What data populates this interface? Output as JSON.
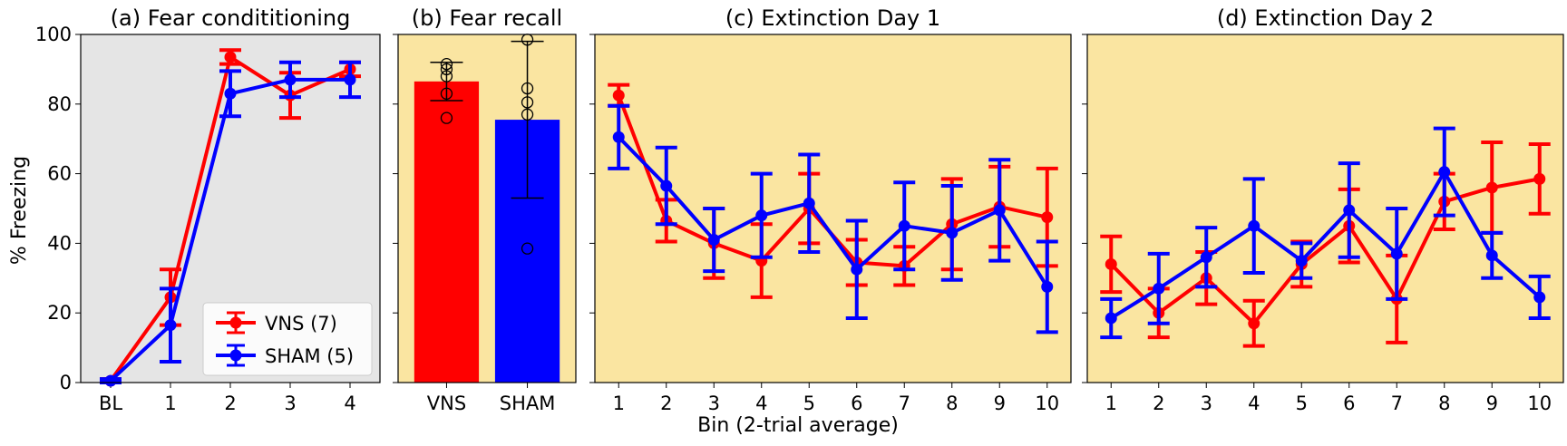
{
  "shared": {
    "ylabel": "% Freezing",
    "xlabel": "Bin (2-trial average)",
    "yticks": [
      0,
      20,
      40,
      60,
      80,
      100
    ],
    "colors": {
      "vns": "#ff0000",
      "sham": "#0000ff",
      "panel_gray": "#e5e5e5",
      "panel_yellow": "#fae5a1"
    }
  },
  "chart_data": [
    {
      "id": "a",
      "type": "line",
      "title": "(a) Fear condititioning",
      "categories": [
        "BL",
        "1",
        "2",
        "3",
        "4"
      ],
      "ylim": [
        0,
        100
      ],
      "background": "panel_gray",
      "legend": {
        "placement": "bottom-right",
        "entries": [
          "VNS (7)",
          "SHAM (5)"
        ]
      },
      "series": [
        {
          "name": "VNS (7)",
          "color": "vns",
          "values": [
            0.5,
            24.5,
            93.5,
            82.5,
            90
          ],
          "err": [
            0.5,
            8,
            2,
            6.5,
            2
          ]
        },
        {
          "name": "SHAM (5)",
          "color": "sham",
          "values": [
            0.5,
            16.5,
            83,
            87,
            87
          ],
          "err": [
            0.5,
            10.5,
            6.5,
            5,
            5
          ]
        }
      ]
    },
    {
      "id": "b",
      "type": "bar",
      "title": "(b) Fear recall",
      "categories": [
        "VNS",
        "SHAM"
      ],
      "ylim": [
        0,
        100
      ],
      "background": "panel_yellow",
      "series": [
        {
          "name": "VNS",
          "color": "vns",
          "value": 86.5,
          "err": 5.5,
          "points": [
            76,
            83,
            88,
            90,
            91.5
          ]
        },
        {
          "name": "SHAM",
          "color": "sham",
          "value": 75.5,
          "err": 22.5,
          "points": [
            38.5,
            77,
            80.5,
            84.5,
            98.5
          ]
        }
      ]
    },
    {
      "id": "c",
      "type": "line",
      "title": "(c) Extinction Day 1",
      "categories": [
        "1",
        "2",
        "3",
        "4",
        "5",
        "6",
        "7",
        "8",
        "9",
        "10"
      ],
      "ylim": [
        0,
        100
      ],
      "background": "panel_yellow",
      "series": [
        {
          "name": "VNS",
          "color": "vns",
          "values": [
            82.5,
            46.5,
            40,
            35,
            50,
            34.5,
            33.5,
            45.5,
            50.5,
            47.5
          ],
          "err": [
            3,
            6,
            10,
            10.5,
            10,
            6.5,
            5.5,
            13,
            11.5,
            14
          ]
        },
        {
          "name": "SHAM",
          "color": "sham",
          "values": [
            70.5,
            56.5,
            41,
            48,
            51.5,
            32.5,
            45,
            43,
            49.5,
            27.5
          ],
          "err": [
            9,
            11,
            9,
            12,
            14,
            14,
            12.5,
            13.5,
            14.5,
            13
          ]
        }
      ]
    },
    {
      "id": "d",
      "type": "line",
      "title": "(d) Extinction Day 2",
      "categories": [
        "1",
        "2",
        "3",
        "4",
        "5",
        "6",
        "7",
        "8",
        "9",
        "10"
      ],
      "ylim": [
        0,
        100
      ],
      "background": "panel_yellow",
      "series": [
        {
          "name": "VNS",
          "color": "vns",
          "values": [
            34,
            20,
            30,
            17,
            34,
            45,
            24,
            52,
            56,
            58.5
          ],
          "err": [
            8,
            7,
            7.5,
            6.5,
            6.5,
            10.5,
            12.5,
            8,
            13,
            10
          ]
        },
        {
          "name": "SHAM",
          "color": "sham",
          "values": [
            18.5,
            27,
            36,
            45,
            35,
            49.5,
            37,
            60.5,
            36.5,
            24.5
          ],
          "err": [
            5.5,
            10,
            8.5,
            13.5,
            5,
            13.5,
            13,
            12.5,
            6.5,
            6
          ]
        }
      ]
    }
  ]
}
